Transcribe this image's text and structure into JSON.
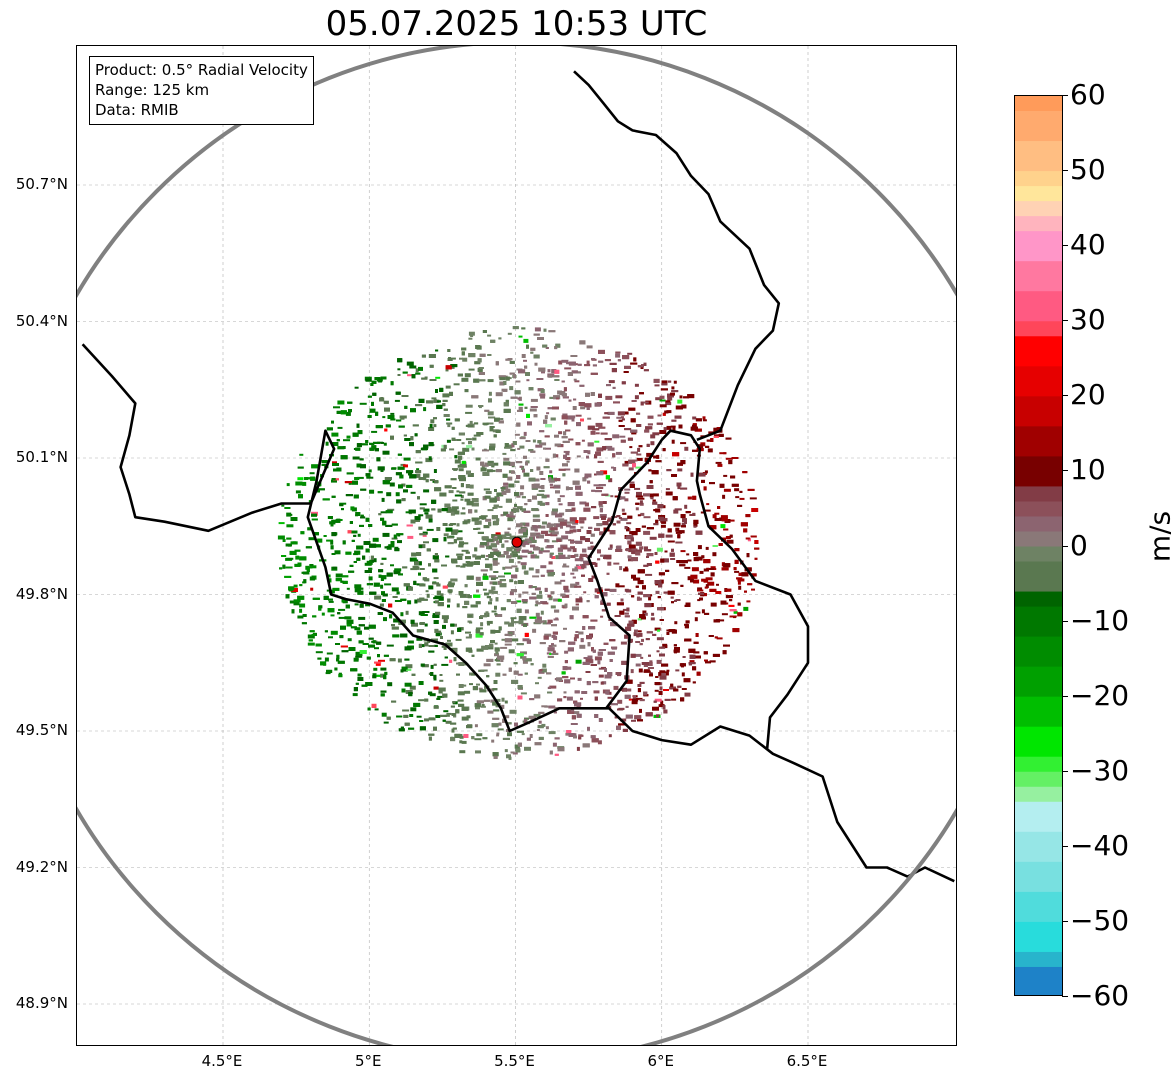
{
  "title": "05.07.2025 10:53 UTC",
  "info_box": {
    "product": "Product: 0.5° Radial Velocity",
    "range": "Range: 125 km",
    "data": "Data: RMIB"
  },
  "map": {
    "lon_range": [
      4.02,
      7.0
    ],
    "lat_range": [
      48.8,
      51.0
    ],
    "lat_ticks": [
      {
        "value": 50.7,
        "label": "50.7°N"
      },
      {
        "value": 50.4,
        "label": "50.4°N"
      },
      {
        "value": 50.1,
        "label": "50.1°N"
      },
      {
        "value": 49.8,
        "label": "49.8°N"
      },
      {
        "value": 49.5,
        "label": "49.5°N"
      },
      {
        "value": 49.2,
        "label": "49.2°N"
      },
      {
        "value": 48.9,
        "label": "48.9°N"
      }
    ],
    "lon_ticks": [
      {
        "value": 4.5,
        "label": "4.5°E"
      },
      {
        "value": 5.0,
        "label": "5°E"
      },
      {
        "value": 5.5,
        "label": "5.5°E"
      },
      {
        "value": 6.0,
        "label": "6°E"
      },
      {
        "value": 6.5,
        "label": "6.5°E"
      }
    ],
    "radar_site": {
      "lon": 5.505,
      "lat": 49.915
    },
    "range_ring_color": "#808080",
    "border_color": "#000000",
    "minor_border_color": "#808080",
    "grid": true,
    "borders": [
      [
        [
          4.02,
          50.35
        ],
        [
          4.12,
          50.28
        ],
        [
          4.2,
          50.22
        ],
        [
          4.18,
          50.15
        ],
        [
          4.15,
          50.08
        ],
        [
          4.18,
          50.02
        ],
        [
          4.2,
          49.97
        ],
        [
          4.3,
          49.96
        ],
        [
          4.45,
          49.94
        ],
        [
          4.6,
          49.98
        ],
        [
          4.7,
          50.0
        ],
        [
          4.8,
          50.0
        ],
        [
          4.88,
          50.12
        ],
        [
          4.85,
          50.16
        ],
        [
          4.82,
          50.05
        ],
        [
          4.79,
          49.97
        ],
        [
          4.85,
          49.86
        ],
        [
          4.87,
          49.8
        ],
        [
          4.92,
          49.79
        ],
        [
          5.0,
          49.78
        ],
        [
          5.08,
          49.76
        ],
        [
          5.15,
          49.71
        ],
        [
          5.26,
          49.69
        ],
        [
          5.33,
          49.65
        ],
        [
          5.4,
          49.6
        ],
        [
          5.45,
          49.55
        ],
        [
          5.48,
          49.5
        ],
        [
          5.55,
          49.52
        ],
        [
          5.65,
          49.55
        ],
        [
          5.73,
          49.55
        ],
        [
          5.82,
          49.55
        ],
        [
          5.9,
          49.5
        ],
        [
          6.0,
          49.48
        ],
        [
          6.1,
          49.47
        ],
        [
          6.2,
          49.51
        ],
        [
          6.3,
          49.49
        ],
        [
          6.38,
          49.45
        ],
        [
          6.45,
          49.43
        ],
        [
          6.55,
          49.4
        ],
        [
          6.6,
          49.3
        ],
        [
          6.7,
          49.2
        ],
        [
          6.77,
          49.2
        ],
        [
          6.84,
          49.18
        ],
        [
          6.9,
          49.2
        ],
        [
          7.0,
          49.17
        ]
      ],
      [
        [
          5.81,
          49.55
        ],
        [
          5.88,
          49.61
        ],
        [
          5.89,
          49.71
        ],
        [
          5.82,
          49.75
        ],
        [
          5.78,
          49.83
        ],
        [
          5.75,
          49.88
        ],
        [
          5.83,
          49.96
        ],
        [
          5.86,
          50.03
        ],
        [
          5.95,
          50.09
        ],
        [
          6.0,
          50.14
        ],
        [
          6.03,
          50.16
        ],
        [
          6.1,
          50.15
        ],
        [
          6.13,
          50.12
        ],
        [
          6.12,
          50.05
        ],
        [
          6.13,
          50.02
        ],
        [
          6.16,
          49.95
        ],
        [
          6.24,
          49.9
        ],
        [
          6.32,
          49.83
        ],
        [
          6.44,
          49.8
        ],
        [
          6.5,
          49.73
        ],
        [
          6.5,
          49.65
        ],
        [
          6.43,
          49.58
        ],
        [
          6.37,
          49.53
        ],
        [
          6.36,
          49.46
        ]
      ],
      [
        [
          6.12,
          50.14
        ],
        [
          6.2,
          50.16
        ],
        [
          6.26,
          50.26
        ],
        [
          6.32,
          50.34
        ],
        [
          6.38,
          50.38
        ],
        [
          6.4,
          50.44
        ],
        [
          6.35,
          50.48
        ],
        [
          6.3,
          50.56
        ],
        [
          6.2,
          50.62
        ],
        [
          6.16,
          50.68
        ],
        [
          6.1,
          50.72
        ],
        [
          6.05,
          50.77
        ],
        [
          5.98,
          50.81
        ],
        [
          5.9,
          50.82
        ],
        [
          5.85,
          50.84
        ],
        [
          5.8,
          50.88
        ],
        [
          5.75,
          50.92
        ],
        [
          5.7,
          50.95
        ]
      ]
    ]
  },
  "colorbar": {
    "unit": "m/s",
    "range": [
      -60,
      60
    ],
    "ticks": [
      {
        "value": 60,
        "label": "60"
      },
      {
        "value": 50,
        "label": "50"
      },
      {
        "value": 40,
        "label": "40"
      },
      {
        "value": 30,
        "label": "30"
      },
      {
        "value": 20,
        "label": "20"
      },
      {
        "value": 10,
        "label": "10"
      },
      {
        "value": 0,
        "label": "0"
      },
      {
        "value": -10,
        "label": "−10"
      },
      {
        "value": -20,
        "label": "−20"
      },
      {
        "value": -30,
        "label": "−30"
      },
      {
        "value": -40,
        "label": "−40"
      },
      {
        "value": -50,
        "label": "−50"
      },
      {
        "value": -60,
        "label": "−60"
      }
    ],
    "stops": [
      {
        "from": 58,
        "to": 60,
        "color": "#ff9b5a"
      },
      {
        "from": 54,
        "to": 58,
        "color": "#ffaa6e"
      },
      {
        "from": 50,
        "to": 54,
        "color": "#ffbe82"
      },
      {
        "from": 48,
        "to": 50,
        "color": "#ffd28c"
      },
      {
        "from": 46,
        "to": 48,
        "color": "#ffe69b"
      },
      {
        "from": 44,
        "to": 46,
        "color": "#ffd2b4"
      },
      {
        "from": 42,
        "to": 44,
        "color": "#ffb4be"
      },
      {
        "from": 38,
        "to": 42,
        "color": "#ff96c8"
      },
      {
        "from": 34,
        "to": 38,
        "color": "#ff78a0"
      },
      {
        "from": 30,
        "to": 34,
        "color": "#ff5a82"
      },
      {
        "from": 28,
        "to": 30,
        "color": "#ff465a"
      },
      {
        "from": 24,
        "to": 28,
        "color": "#ff0000"
      },
      {
        "from": 20,
        "to": 24,
        "color": "#e60000"
      },
      {
        "from": 16,
        "to": 20,
        "color": "#c80000"
      },
      {
        "from": 12,
        "to": 16,
        "color": "#a00000"
      },
      {
        "from": 8,
        "to": 12,
        "color": "#780000"
      },
      {
        "from": 6,
        "to": 8,
        "color": "#823c46"
      },
      {
        "from": 4,
        "to": 6,
        "color": "#8c505a"
      },
      {
        "from": 2,
        "to": 4,
        "color": "#8c6470"
      },
      {
        "from": 0,
        "to": 2,
        "color": "#8a7878"
      },
      {
        "from": -2,
        "to": 0,
        "color": "#6e8264"
      },
      {
        "from": -6,
        "to": -2,
        "color": "#5a7850"
      },
      {
        "from": -8,
        "to": -6,
        "color": "#006400"
      },
      {
        "from": -12,
        "to": -8,
        "color": "#007800"
      },
      {
        "from": -16,
        "to": -12,
        "color": "#008c00"
      },
      {
        "from": -20,
        "to": -16,
        "color": "#00a000"
      },
      {
        "from": -24,
        "to": -20,
        "color": "#00be00"
      },
      {
        "from": -28,
        "to": -24,
        "color": "#00e600"
      },
      {
        "from": -30,
        "to": -28,
        "color": "#32f032"
      },
      {
        "from": -32,
        "to": -30,
        "color": "#64f064"
      },
      {
        "from": -34,
        "to": -32,
        "color": "#96f0a0"
      },
      {
        "from": -38,
        "to": -34,
        "color": "#b4eef0"
      },
      {
        "from": -42,
        "to": -38,
        "color": "#96e6e6"
      },
      {
        "from": -46,
        "to": -42,
        "color": "#78e0e0"
      },
      {
        "from": -50,
        "to": -46,
        "color": "#50dcdc"
      },
      {
        "from": -54,
        "to": -50,
        "color": "#28dcdc"
      },
      {
        "from": -56,
        "to": -54,
        "color": "#28b4cc"
      },
      {
        "from": -60,
        "to": -56,
        "color": "#1e82c8"
      }
    ]
  }
}
